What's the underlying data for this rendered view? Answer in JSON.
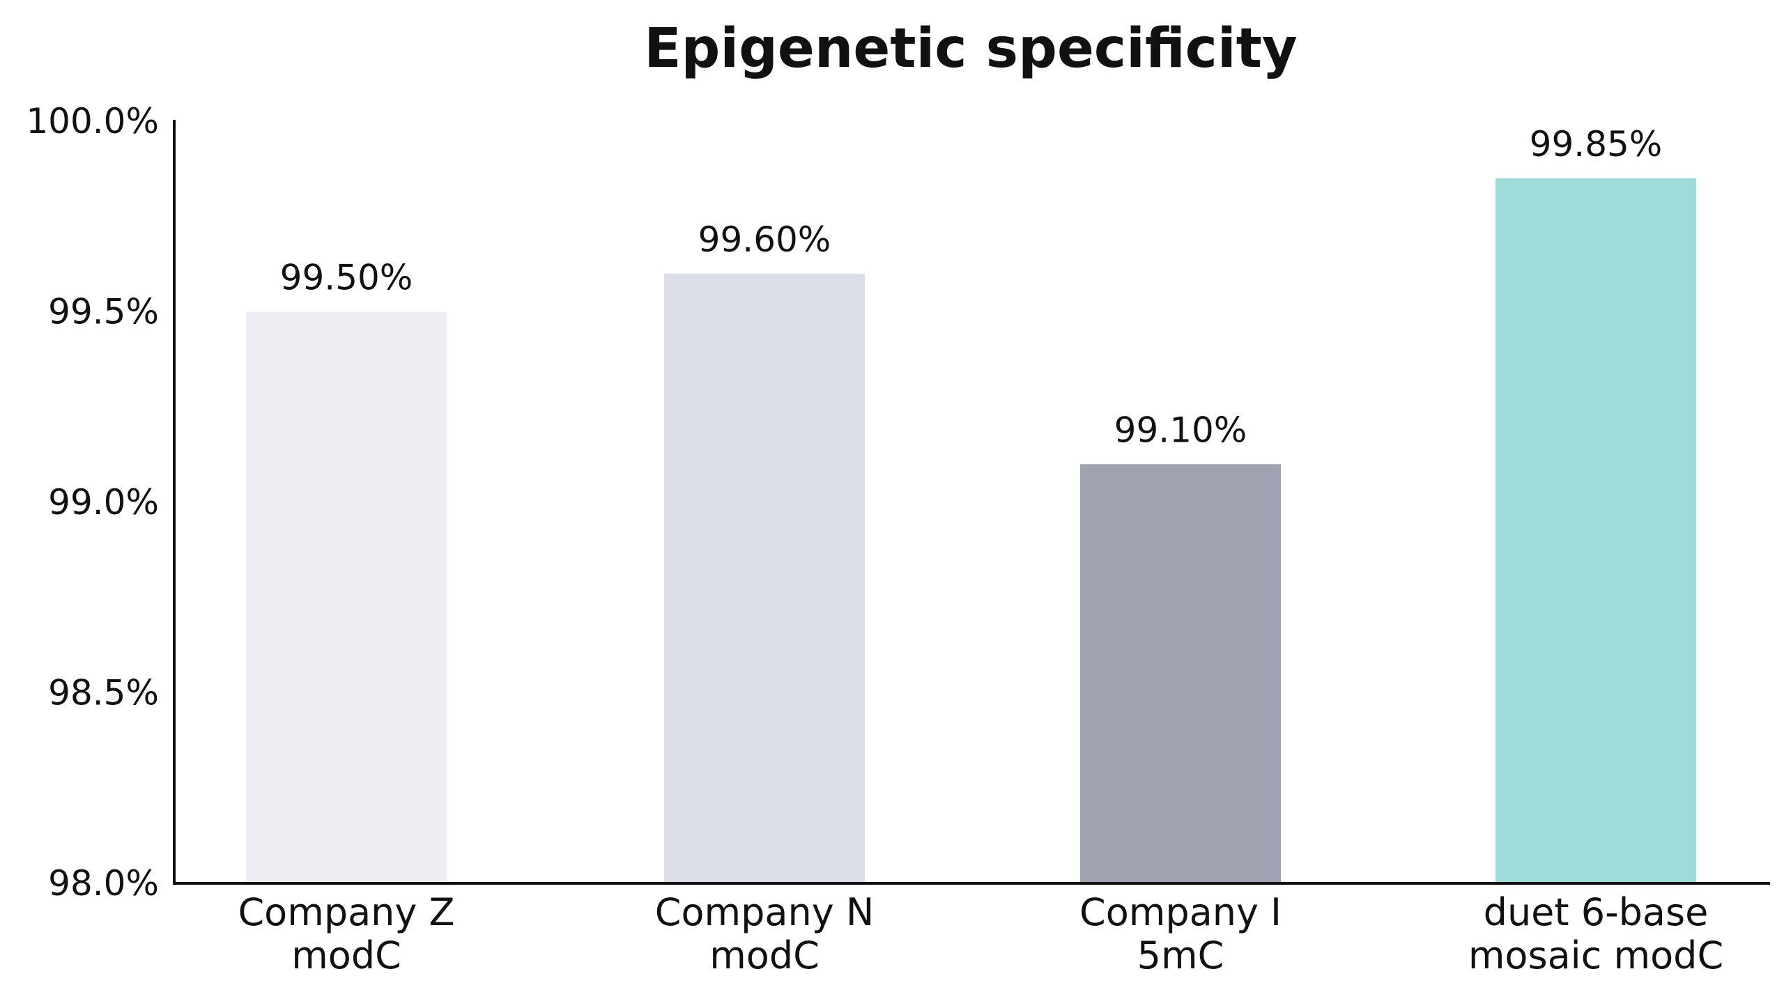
{
  "chart_data": {
    "type": "bar",
    "title": "Epigenetic specificity",
    "xlabel": "",
    "ylabel": "",
    "categories": [
      [
        "Company Z",
        "modC"
      ],
      [
        "Company N",
        "modC"
      ],
      [
        "Company I",
        "5mC"
      ],
      [
        "duet 6-base",
        "mosaic modC"
      ]
    ],
    "values": [
      99.5,
      99.6,
      99.1,
      99.85
    ],
    "data_labels": [
      "99.50%",
      "99.60%",
      "99.10%",
      "99.85%"
    ],
    "colors": [
      "#eeeff4",
      "#dcdfe7",
      "#9fa2b0",
      "#9ddcd9"
    ],
    "ylim": [
      98.0,
      100.0
    ],
    "yticks": [
      98.0,
      98.5,
      99.0,
      99.5,
      100.0
    ],
    "ytick_labels": [
      "98.0%",
      "98.5%",
      "99.0%",
      "99.5%",
      "100.0%"
    ],
    "grid": false,
    "legend": "none"
  }
}
